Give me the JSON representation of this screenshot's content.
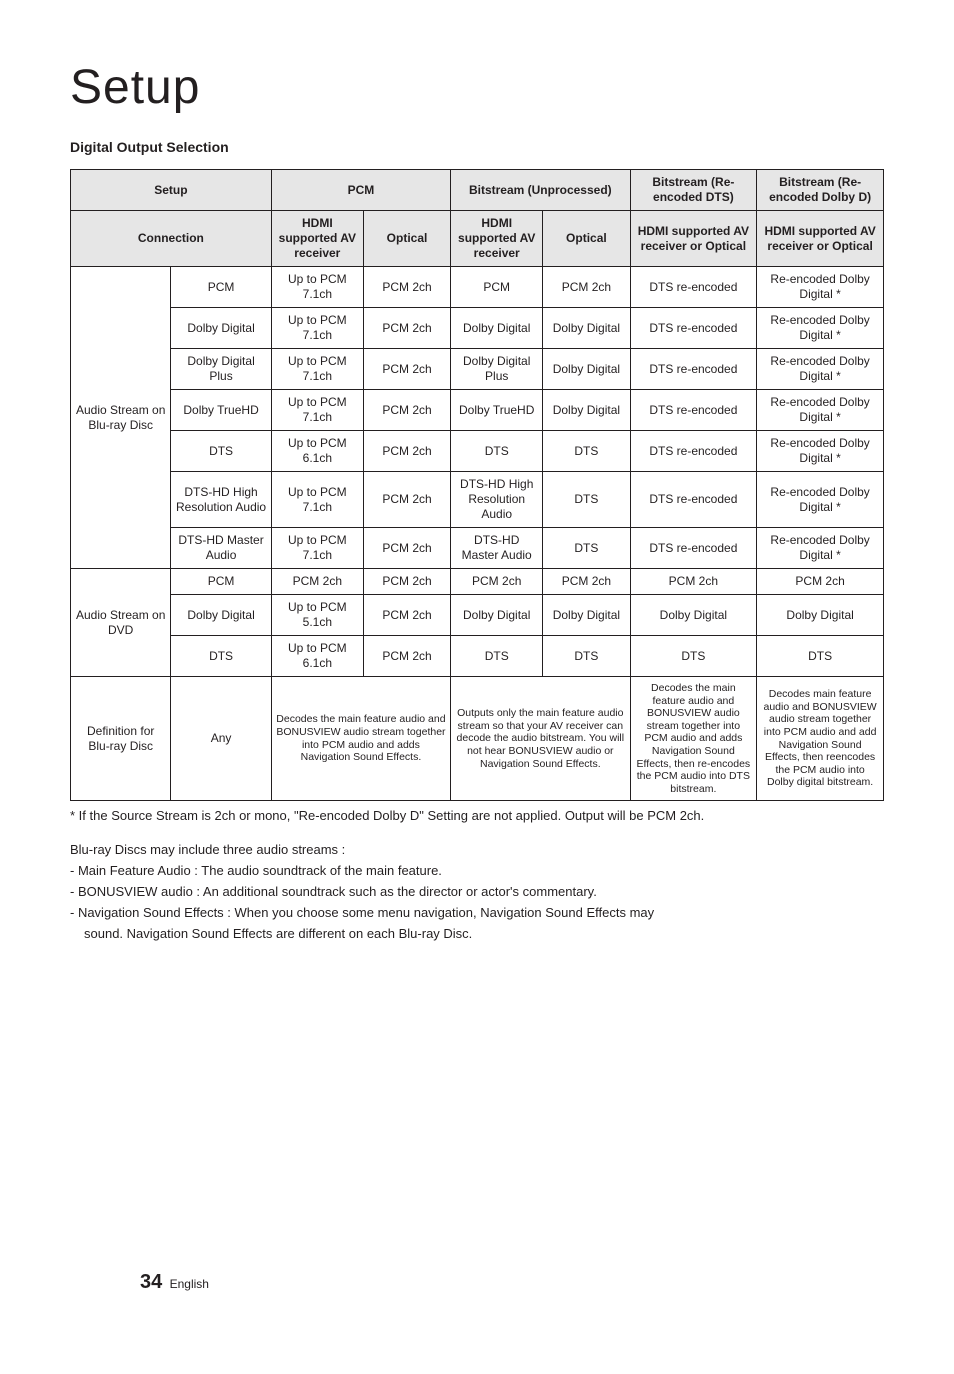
{
  "page": {
    "title": "Setup",
    "subtitle": "Digital Output Selection",
    "footnote": "* If the Source Stream is 2ch or mono, \"Re-encoded Dolby D\" Setting are not applied. Output will be PCM 2ch.",
    "intro": "Blu-ray Discs may include three audio streams :",
    "bullets": [
      "-  Main Feature Audio : The audio soundtrack of the main feature.",
      "-  BONUSVIEW audio : An additional soundtrack such as the director or actor's commentary.",
      "-  Navigation Sound Effects : When you choose some menu navigation, Navigation Sound Effects may"
    ],
    "bullet_wrap": "sound. Navigation Sound Effects are different on each Blu-ray Disc.",
    "page_number": "34",
    "page_lang": "English"
  },
  "style": {
    "header_bg": "#e6e6e6",
    "border_color": "#231f20",
    "text_color": "#231f20",
    "body_font_size": 12,
    "small_font_size": 10.5,
    "title_font_size": 48
  },
  "table": {
    "header_row1": {
      "setup": "Setup",
      "pcm": "PCM",
      "bitstream_unprocessed": "Bitstream (Unprocessed)",
      "bitstream_dts": "Bitstream (Re-encoded DTS)",
      "bitstream_dolby": "Bitstream (Re-encoded Dolby D)"
    },
    "header_row2": {
      "connection": "Connection",
      "hdmi_av": "HDMI supported AV receiver",
      "optical": "Optical",
      "hdmi_av2": "HDMI supported AV receiver",
      "optical2": "Optical",
      "hdmi_or_optical_dts": "HDMI supported AV receiver or Optical",
      "hdmi_or_optical_dolby": "HDMI supported AV receiver or Optical"
    },
    "group_bluray": "Audio Stream on Blu-ray Disc",
    "group_dvd": "Audio Stream on DVD",
    "group_def": "Definition for Blu-ray Disc",
    "rows_bluray": [
      {
        "fmt": "PCM",
        "c1": "Up to PCM 7.1ch",
        "c2": "PCM 2ch",
        "c3": "PCM",
        "c4": "PCM 2ch",
        "c5": "DTS re-encoded",
        "c6": "Re-encoded Dolby Digital *"
      },
      {
        "fmt": "Dolby Digital",
        "c1": "Up to PCM 7.1ch",
        "c2": "PCM 2ch",
        "c3": "Dolby Digital",
        "c4": "Dolby Digital",
        "c5": "DTS re-encoded",
        "c6": "Re-encoded Dolby Digital *"
      },
      {
        "fmt": "Dolby Digital Plus",
        "c1": "Up to PCM 7.1ch",
        "c2": "PCM 2ch",
        "c3": "Dolby Digital Plus",
        "c4": "Dolby Digital",
        "c5": "DTS re-encoded",
        "c6": "Re-encoded Dolby Digital *"
      },
      {
        "fmt": "Dolby TrueHD",
        "c1": "Up to PCM 7.1ch",
        "c2": "PCM 2ch",
        "c3": "Dolby TrueHD",
        "c4": "Dolby Digital",
        "c5": "DTS re-encoded",
        "c6": "Re-encoded Dolby Digital *"
      },
      {
        "fmt": "DTS",
        "c1": "Up to PCM 6.1ch",
        "c2": "PCM 2ch",
        "c3": "DTS",
        "c4": "DTS",
        "c5": "DTS re-encoded",
        "c6": "Re-encoded Dolby Digital *"
      },
      {
        "fmt": "DTS-HD High Resolution Audio",
        "c1": "Up to PCM 7.1ch",
        "c2": "PCM 2ch",
        "c3": "DTS-HD High Resolution Audio",
        "c4": "DTS",
        "c5": "DTS re-encoded",
        "c6": "Re-encoded Dolby Digital *"
      },
      {
        "fmt": "DTS-HD Master Audio",
        "c1": "Up to PCM 7.1ch",
        "c2": "PCM 2ch",
        "c3": "DTS-HD Master Audio",
        "c4": "DTS",
        "c5": "DTS re-encoded",
        "c6": "Re-encoded Dolby Digital *"
      }
    ],
    "rows_dvd": [
      {
        "fmt": "PCM",
        "c1": "PCM 2ch",
        "c2": "PCM 2ch",
        "c3": "PCM 2ch",
        "c4": "PCM 2ch",
        "c5": "PCM 2ch",
        "c6": "PCM 2ch"
      },
      {
        "fmt": "Dolby Digital",
        "c1": "Up to PCM 5.1ch",
        "c2": "PCM 2ch",
        "c3": "Dolby Digital",
        "c4": "Dolby Digital",
        "c5": "Dolby Digital",
        "c6": "Dolby Digital"
      },
      {
        "fmt": "DTS",
        "c1": "Up to PCM 6.1ch",
        "c2": "PCM 2ch",
        "c3": "DTS",
        "c4": "DTS",
        "c5": "DTS",
        "c6": "DTS"
      }
    ],
    "row_def": {
      "fmt": "Any",
      "pcm": "Decodes the main feature audio and BONUSVIEW audio stream together into PCM audio and adds Navigation Sound Effects.",
      "bitstream": "Outputs only the main feature audio stream so that your AV receiver can decode the audio bitstream. You will not hear BONUSVIEW audio or Navigation Sound Effects.",
      "dts": "Decodes the main feature audio and BONUSVIEW audio stream together into PCM audio and adds Navigation Sound Effects, then re-encodes the PCM audio into DTS bitstream.",
      "dolby": "Decodes main feature audio and BONUSVIEW audio stream together into PCM audio and add Navigation Sound Effects, then reencodes the PCM audio into Dolby digital bitstream."
    }
  }
}
